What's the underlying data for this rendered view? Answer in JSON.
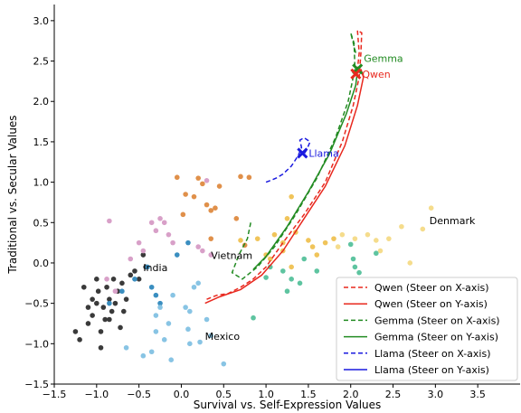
{
  "chart_data": {
    "type": "scatter",
    "xlabel": "Survival vs. Self-Expression Values",
    "ylabel": "Traditional vs. Secular Values",
    "xlim": [
      -1.5,
      4.0
    ],
    "ylim": [
      -1.5,
      3.2
    ],
    "xticks": [
      "−1.5",
      "−1.0",
      "−0.5",
      "0.0",
      "0.5",
      "1.0",
      "1.5",
      "2.0",
      "2.5",
      "3.0",
      "3.5"
    ],
    "xtick_values": [
      -1.5,
      -1.0,
      -0.5,
      0.0,
      0.5,
      1.0,
      1.5,
      2.0,
      2.5,
      3.0,
      3.5
    ],
    "yticks": [
      "−1.5",
      "−1.0",
      "−0.5",
      "0.0",
      "0.5",
      "1.0",
      "1.5",
      "2.0",
      "2.5",
      "3.0"
    ],
    "ytick_values": [
      -1.5,
      -1.0,
      -0.5,
      0.0,
      0.5,
      1.0,
      1.5,
      2.0,
      2.5,
      3.0
    ],
    "country_clusters": [
      {
        "color": "#3a3a3a",
        "points": [
          [
            -1.25,
            -0.85
          ],
          [
            -1.15,
            -0.3
          ],
          [
            -1.1,
            -0.55
          ],
          [
            -1.05,
            -0.45
          ],
          [
            -1.05,
            -0.65
          ],
          [
            -1.0,
            -0.5
          ],
          [
            -1.0,
            -0.2
          ],
          [
            -0.98,
            -0.35
          ],
          [
            -0.95,
            -0.85
          ],
          [
            -0.92,
            -0.55
          ],
          [
            -0.9,
            -0.7
          ],
          [
            -0.88,
            -0.3
          ],
          [
            -0.85,
            -0.45
          ],
          [
            -0.85,
            -0.7
          ],
          [
            -0.82,
            -0.6
          ],
          [
            -0.8,
            -0.2
          ],
          [
            -0.78,
            -0.5
          ],
          [
            -0.75,
            -0.35
          ],
          [
            -0.72,
            -0.8
          ],
          [
            -0.7,
            -0.25
          ],
          [
            -0.68,
            -0.6
          ],
          [
            -0.65,
            -0.45
          ],
          [
            -0.6,
            -0.15
          ],
          [
            -0.55,
            -0.1
          ],
          [
            -0.5,
            -0.2
          ],
          [
            -0.45,
            0.1
          ],
          [
            -0.42,
            -0.05
          ],
          [
            -1.2,
            -0.95
          ],
          [
            -0.95,
            -1.05
          ],
          [
            -1.1,
            -0.75
          ]
        ]
      },
      {
        "color": "#d8a0c8",
        "points": [
          [
            -0.85,
            0.52
          ],
          [
            -0.88,
            -0.2
          ],
          [
            -0.78,
            -0.35
          ],
          [
            -0.6,
            0.05
          ],
          [
            -0.5,
            0.25
          ],
          [
            -0.45,
            0.15
          ],
          [
            -0.35,
            0.5
          ],
          [
            -0.3,
            0.4
          ],
          [
            -0.25,
            0.55
          ],
          [
            -0.2,
            0.5
          ],
          [
            -0.15,
            0.35
          ],
          [
            0.2,
            0.2
          ],
          [
            0.25,
            0.15
          ],
          [
            0.3,
            1.02
          ],
          [
            0.35,
            0.1
          ],
          [
            -0.1,
            0.25
          ]
        ]
      },
      {
        "color": "#3a8ec0",
        "points": [
          [
            -0.55,
            -0.2
          ],
          [
            -0.4,
            -0.05
          ],
          [
            -0.35,
            -0.3
          ],
          [
            -0.3,
            -0.4
          ],
          [
            -0.25,
            -0.5
          ],
          [
            -0.05,
            0.1
          ],
          [
            0.08,
            0.25
          ],
          [
            -0.7,
            -0.35
          ],
          [
            -0.85,
            -0.5
          ]
        ]
      },
      {
        "color": "#88c4e4",
        "points": [
          [
            -0.65,
            -1.05
          ],
          [
            -0.45,
            -1.15
          ],
          [
            -0.35,
            -1.1
          ],
          [
            -0.3,
            -0.85
          ],
          [
            -0.3,
            -0.65
          ],
          [
            -0.25,
            -0.55
          ],
          [
            -0.2,
            -0.95
          ],
          [
            -0.15,
            -0.75
          ],
          [
            -0.1,
            -0.4
          ],
          [
            -0.12,
            -1.2
          ],
          [
            0.05,
            -0.55
          ],
          [
            0.08,
            -0.82
          ],
          [
            0.1,
            -0.6
          ],
          [
            0.1,
            -1.0
          ],
          [
            0.2,
            -0.25
          ],
          [
            0.22,
            -0.98
          ],
          [
            0.3,
            -0.7
          ],
          [
            0.5,
            -1.25
          ],
          [
            0.15,
            -0.3
          ],
          [
            0.35,
            -0.9
          ]
        ]
      },
      {
        "color": "#e0904a",
        "points": [
          [
            -0.05,
            1.06
          ],
          [
            0.02,
            0.6
          ],
          [
            0.05,
            0.85
          ],
          [
            0.15,
            0.82
          ],
          [
            0.2,
            1.05
          ],
          [
            0.25,
            0.98
          ],
          [
            0.3,
            0.72
          ],
          [
            0.35,
            0.65
          ],
          [
            0.4,
            0.68
          ],
          [
            0.7,
            1.07
          ],
          [
            0.8,
            1.06
          ],
          [
            0.65,
            0.55
          ],
          [
            0.45,
            0.95
          ],
          [
            0.35,
            0.3
          ],
          [
            0.75,
            0.22
          ]
        ]
      },
      {
        "color": "#f0c45a",
        "points": [
          [
            0.7,
            0.28
          ],
          [
            0.9,
            0.3
          ],
          [
            1.0,
            0.1
          ],
          [
            1.05,
            0.05
          ],
          [
            1.1,
            0.35
          ],
          [
            1.2,
            0.15
          ],
          [
            1.25,
            0.55
          ],
          [
            1.3,
            0.82
          ],
          [
            1.35,
            0.38
          ],
          [
            1.5,
            0.28
          ],
          [
            1.55,
            0.2
          ],
          [
            1.6,
            0.1
          ],
          [
            1.7,
            0.25
          ],
          [
            1.8,
            0.3
          ],
          [
            1.3,
            -0.05
          ],
          [
            1.2,
            0.25
          ]
        ]
      },
      {
        "color": "#f5dc8c",
        "points": [
          [
            1.9,
            0.35
          ],
          [
            2.05,
            0.3
          ],
          [
            2.3,
            0.28
          ],
          [
            2.45,
            0.3
          ],
          [
            2.6,
            0.45
          ],
          [
            2.7,
            0.0
          ],
          [
            2.85,
            0.42
          ],
          [
            2.95,
            0.68
          ],
          [
            2.2,
            0.35
          ],
          [
            2.35,
            0.15
          ],
          [
            1.85,
            0.2
          ]
        ]
      },
      {
        "color": "#5ec4a0",
        "points": [
          [
            0.85,
            -0.68
          ],
          [
            1.05,
            -0.05
          ],
          [
            1.2,
            -0.1
          ],
          [
            1.3,
            -0.2
          ],
          [
            1.25,
            -0.35
          ],
          [
            1.0,
            -0.18
          ],
          [
            1.45,
            0.05
          ],
          [
            2.0,
            0.23
          ],
          [
            2.03,
            0.05
          ],
          [
            2.05,
            -0.05
          ],
          [
            2.1,
            -0.12
          ],
          [
            2.3,
            0.12
          ],
          [
            1.4,
            -0.25
          ],
          [
            1.6,
            -0.1
          ]
        ]
      }
    ],
    "series": [
      {
        "name": "Qwen (Steer on X-axis)",
        "color": "#e8281e",
        "style": "dashed",
        "points": [
          [
            0.3,
            -0.45
          ],
          [
            0.42,
            -0.4
          ],
          [
            0.55,
            -0.38
          ],
          [
            0.7,
            -0.3
          ],
          [
            0.85,
            -0.2
          ],
          [
            1.0,
            -0.05
          ],
          [
            1.2,
            0.25
          ],
          [
            1.45,
            0.6
          ],
          [
            1.7,
            1.0
          ],
          [
            1.9,
            1.5
          ],
          [
            2.03,
            1.95
          ],
          [
            2.1,
            2.3
          ],
          [
            2.12,
            2.6
          ],
          [
            2.13,
            2.85
          ],
          [
            2.08,
            2.88
          ],
          [
            2.1,
            2.6
          ],
          [
            2.08,
            2.4
          ]
        ]
      },
      {
        "name": "Qwen (Steer on Y-axis)",
        "color": "#e8281e",
        "style": "solid",
        "points": [
          [
            0.28,
            -0.5
          ],
          [
            0.45,
            -0.42
          ],
          [
            0.7,
            -0.33
          ],
          [
            0.95,
            -0.15
          ],
          [
            1.2,
            0.15
          ],
          [
            1.45,
            0.55
          ],
          [
            1.7,
            0.95
          ],
          [
            1.93,
            1.45
          ],
          [
            2.08,
            1.95
          ],
          [
            2.15,
            2.3
          ],
          [
            2.12,
            2.4
          ]
        ]
      },
      {
        "name": "Gemma (Steer on X-axis)",
        "color": "#228b22",
        "style": "dashed",
        "points": [
          [
            0.82,
            0.5
          ],
          [
            0.78,
            0.3
          ],
          [
            0.68,
            0.1
          ],
          [
            0.6,
            -0.12
          ],
          [
            0.72,
            -0.2
          ],
          [
            0.9,
            -0.05
          ],
          [
            1.1,
            0.2
          ],
          [
            1.35,
            0.6
          ],
          [
            1.6,
            1.05
          ],
          [
            1.82,
            1.55
          ],
          [
            1.97,
            2.0
          ],
          [
            2.05,
            2.4
          ],
          [
            2.04,
            2.72
          ],
          [
            2.0,
            2.85
          ],
          [
            2.06,
            2.6
          ]
        ]
      },
      {
        "name": "Gemma (Steer on Y-axis)",
        "color": "#228b22",
        "style": "solid",
        "points": [
          [
            0.85,
            -0.08
          ],
          [
            1.0,
            0.08
          ],
          [
            1.25,
            0.45
          ],
          [
            1.5,
            0.88
          ],
          [
            1.75,
            1.35
          ],
          [
            1.95,
            1.85
          ],
          [
            2.06,
            2.2
          ],
          [
            2.08,
            2.38
          ]
        ]
      },
      {
        "name": "Llama (Steer on X-axis)",
        "color": "#1a1adf",
        "style": "dashed",
        "points": [
          [
            1.0,
            1.0
          ],
          [
            1.05,
            1.02
          ],
          [
            1.12,
            1.05
          ],
          [
            1.2,
            1.1
          ],
          [
            1.3,
            1.2
          ],
          [
            1.38,
            1.33
          ],
          [
            1.42,
            1.43
          ],
          [
            1.4,
            1.52
          ],
          [
            1.45,
            1.55
          ],
          [
            1.52,
            1.5
          ],
          [
            1.48,
            1.4
          ],
          [
            1.45,
            1.35
          ]
        ]
      },
      {
        "name": "Llama (Steer on Y-axis)",
        "color": "#1a1adf",
        "style": "solid",
        "points": [
          [
            1.42,
            1.36
          ],
          [
            1.44,
            1.38
          ]
        ]
      }
    ],
    "model_markers": [
      {
        "label": "Gemma",
        "color": "#228b22",
        "x": 2.08,
        "y": 2.4
      },
      {
        "label": "Qwen",
        "color": "#e8281e",
        "x": 2.06,
        "y": 2.34
      },
      {
        "label": "Llama",
        "color": "#1a1adf",
        "x": 1.43,
        "y": 1.36
      }
    ],
    "annotations": [
      {
        "text": "Denmark",
        "x": 2.93,
        "y": 0.48
      },
      {
        "text": "India",
        "x": -0.45,
        "y": -0.1
      },
      {
        "text": "Vietnam",
        "x": 0.35,
        "y": 0.05
      },
      {
        "text": "Mexico",
        "x": 0.28,
        "y": -0.95
      }
    ],
    "legend_position": "bottom-right",
    "grid": false
  }
}
